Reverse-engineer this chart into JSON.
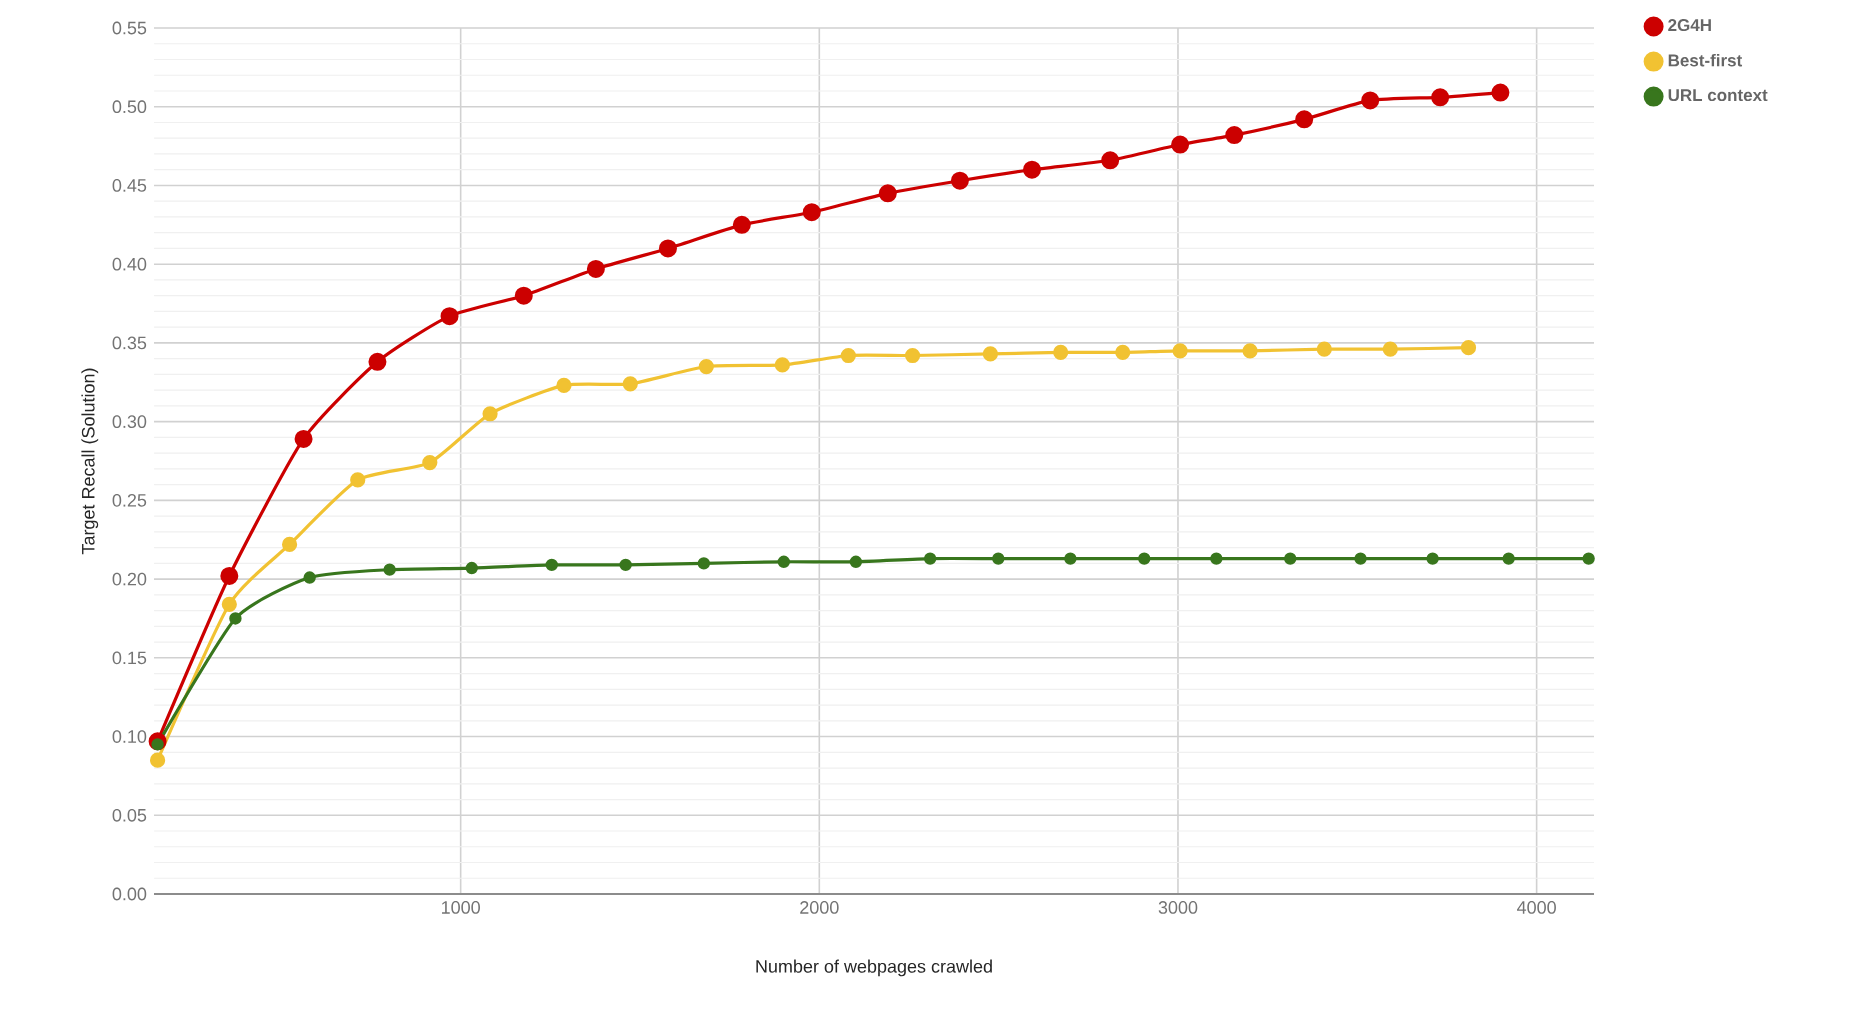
{
  "chart_data": {
    "type": "line",
    "xlabel": "Number of webpages crawled",
    "ylabel": "Target Recall (Solution)",
    "xlim": [
      145,
      4160
    ],
    "ylim": [
      0,
      0.55
    ],
    "xticks": [
      1000,
      2000,
      3000,
      4000
    ],
    "yticks": [
      {
        "value": 0,
        "label": "0.00"
      },
      {
        "value": 0.05,
        "label": "0.05"
      },
      {
        "value": 0.1,
        "label": "0.10"
      },
      {
        "value": 0.15,
        "label": "0.15"
      },
      {
        "value": 0.2,
        "label": "0.20"
      },
      {
        "value": 0.25,
        "label": "0.25"
      },
      {
        "value": 0.3,
        "label": "0.30"
      },
      {
        "value": 0.35,
        "label": "0.35"
      },
      {
        "value": 0.4,
        "label": "0.40"
      },
      {
        "value": 0.45,
        "label": "0.45"
      },
      {
        "value": 0.5,
        "label": "0.50"
      },
      {
        "value": 0.55,
        "label": "0.55"
      }
    ],
    "grid": true,
    "legend": "top right",
    "marker": "circle",
    "line_style": "solid",
    "series": [
      {
        "name": "2G4H",
        "color": "#cc0000",
        "x": [
          155,
          355,
          562,
          768,
          969,
          1176,
          1377,
          1578,
          1784,
          1979,
          2191,
          2392,
          2593,
          2811,
          3006,
          3157,
          3352,
          3536,
          3731,
          3899
        ],
        "values": [
          0.097,
          0.202,
          0.289,
          0.338,
          0.367,
          0.38,
          0.397,
          0.41,
          0.425,
          0.433,
          0.445,
          0.453,
          0.46,
          0.466,
          0.476,
          0.482,
          0.492,
          0.504,
          0.506,
          0.509
        ]
      },
      {
        "name": "Best-first",
        "color": "#f1c232",
        "x": [
          155,
          355,
          523,
          713,
          914,
          1082,
          1288,
          1473,
          1685,
          1897,
          2081,
          2260,
          2477,
          2673,
          2846,
          3006,
          3201,
          3408,
          3592,
          3810
        ],
        "values": [
          0.085,
          0.184,
          0.222,
          0.263,
          0.274,
          0.305,
          0.323,
          0.324,
          0.335,
          0.336,
          0.342,
          0.342,
          0.343,
          0.344,
          0.344,
          0.345,
          0.345,
          0.346,
          0.346,
          0.347
        ]
      },
      {
        "name": "URL context",
        "color": "#38761d",
        "x": [
          155,
          372,
          579,
          802,
          1031,
          1254,
          1460,
          1678,
          1901,
          2102,
          2309,
          2499,
          2700,
          2906,
          3107,
          3313,
          3509,
          3710,
          3922,
          4145
        ],
        "values": [
          0.095,
          0.175,
          0.201,
          0.206,
          0.207,
          0.209,
          0.209,
          0.21,
          0.211,
          0.211,
          0.213,
          0.213,
          0.213,
          0.213,
          0.213,
          0.213,
          0.213,
          0.213,
          0.213,
          0.213
        ]
      }
    ]
  }
}
